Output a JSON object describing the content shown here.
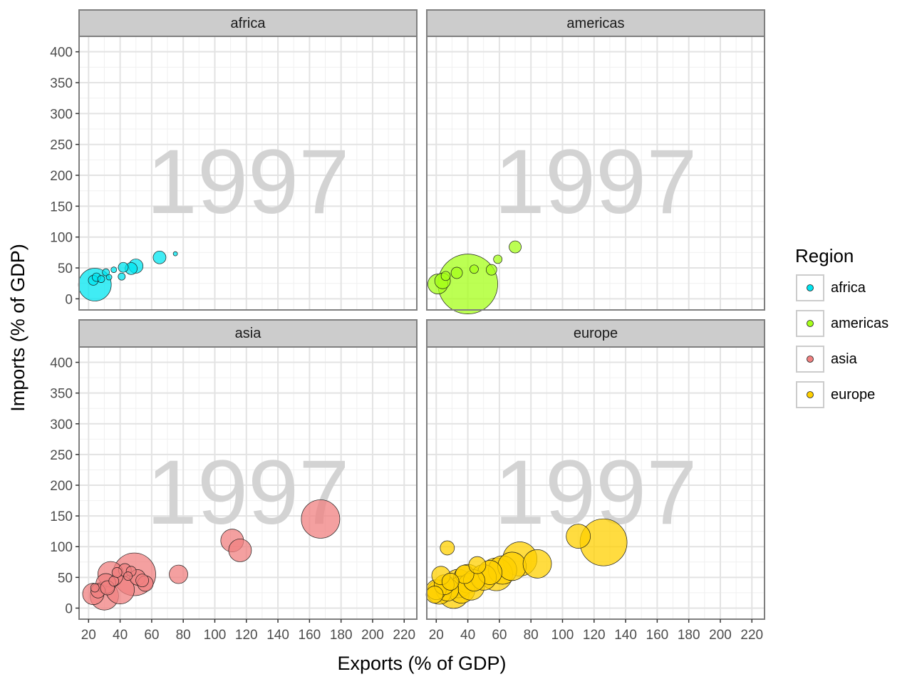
{
  "chart_data": {
    "type": "scatter",
    "title": "",
    "xlabel": "Exports (% of GDP)",
    "ylabel": "Imports (% of GDP)",
    "xlim": [
      14,
      228
    ],
    "ylim": [
      -18,
      425
    ],
    "xticks": [
      20,
      40,
      60,
      80,
      100,
      120,
      140,
      160,
      180,
      200,
      220
    ],
    "yticks": [
      0,
      50,
      100,
      150,
      200,
      250,
      300,
      350,
      400
    ],
    "grid": true,
    "annotation": "1997",
    "legend": {
      "title": "Region",
      "position": "right",
      "entries": [
        {
          "name": "africa",
          "color": "#00E5F0"
        },
        {
          "name": "americas",
          "color": "#A6FF1A"
        },
        {
          "name": "asia",
          "color": "#F08080"
        },
        {
          "name": "europe",
          "color": "#FFD000"
        }
      ]
    },
    "facets": [
      {
        "label": "africa",
        "color": "#00E5F0",
        "points": [
          {
            "x": 24,
            "y": 23,
            "size": 46
          },
          {
            "x": 23,
            "y": 30,
            "size": 14
          },
          {
            "x": 25,
            "y": 35,
            "size": 12
          },
          {
            "x": 28,
            "y": 32,
            "size": 10
          },
          {
            "x": 31,
            "y": 43,
            "size": 10
          },
          {
            "x": 33,
            "y": 35,
            "size": 8
          },
          {
            "x": 36,
            "y": 47,
            "size": 8
          },
          {
            "x": 41,
            "y": 36,
            "size": 10
          },
          {
            "x": 42,
            "y": 51,
            "size": 14
          },
          {
            "x": 47,
            "y": 49,
            "size": 17
          },
          {
            "x": 50,
            "y": 53,
            "size": 20
          },
          {
            "x": 65,
            "y": 67,
            "size": 18
          },
          {
            "x": 75,
            "y": 73,
            "size": 6
          }
        ]
      },
      {
        "label": "americas",
        "color": "#A6FF1A",
        "points": [
          {
            "x": 21,
            "y": 24,
            "size": 28
          },
          {
            "x": 24,
            "y": 29,
            "size": 22
          },
          {
            "x": 26,
            "y": 37,
            "size": 13
          },
          {
            "x": 33,
            "y": 42,
            "size": 16
          },
          {
            "x": 40,
            "y": 24,
            "size": 84
          },
          {
            "x": 44,
            "y": 48,
            "size": 12
          },
          {
            "x": 55,
            "y": 47,
            "size": 15
          },
          {
            "x": 59,
            "y": 64,
            "size": 12
          },
          {
            "x": 70,
            "y": 84,
            "size": 17
          }
        ]
      },
      {
        "label": "asia",
        "color": "#F08080",
        "points": [
          {
            "x": 23,
            "y": 23,
            "size": 30
          },
          {
            "x": 24,
            "y": 33,
            "size": 12
          },
          {
            "x": 26,
            "y": 28,
            "size": 20
          },
          {
            "x": 30,
            "y": 20,
            "size": 40
          },
          {
            "x": 31,
            "y": 40,
            "size": 28
          },
          {
            "x": 32,
            "y": 33,
            "size": 20
          },
          {
            "x": 34,
            "y": 55,
            "size": 36
          },
          {
            "x": 36,
            "y": 44,
            "size": 14
          },
          {
            "x": 38,
            "y": 58,
            "size": 14
          },
          {
            "x": 40,
            "y": 30,
            "size": 40
          },
          {
            "x": 43,
            "y": 62,
            "size": 18
          },
          {
            "x": 45,
            "y": 52,
            "size": 12
          },
          {
            "x": 47,
            "y": 60,
            "size": 14
          },
          {
            "x": 49,
            "y": 55,
            "size": 60
          },
          {
            "x": 51,
            "y": 50,
            "size": 22
          },
          {
            "x": 54,
            "y": 45,
            "size": 18
          },
          {
            "x": 56,
            "y": 40,
            "size": 22
          },
          {
            "x": 77,
            "y": 55,
            "size": 26
          },
          {
            "x": 111,
            "y": 110,
            "size": 32
          },
          {
            "x": 116,
            "y": 94,
            "size": 32
          },
          {
            "x": 167,
            "y": 145,
            "size": 54
          }
        ]
      },
      {
        "label": "europe",
        "color": "#FFD000",
        "points": [
          {
            "x": 19,
            "y": 22,
            "size": 24
          },
          {
            "x": 20,
            "y": 30,
            "size": 28
          },
          {
            "x": 22,
            "y": 26,
            "size": 34
          },
          {
            "x": 23,
            "y": 53,
            "size": 26
          },
          {
            "x": 25,
            "y": 38,
            "size": 28
          },
          {
            "x": 27,
            "y": 30,
            "size": 32
          },
          {
            "x": 27,
            "y": 98,
            "size": 20
          },
          {
            "x": 29,
            "y": 43,
            "size": 24
          },
          {
            "x": 31,
            "y": 25,
            "size": 44
          },
          {
            "x": 34,
            "y": 40,
            "size": 40
          },
          {
            "x": 36,
            "y": 30,
            "size": 38
          },
          {
            "x": 38,
            "y": 55,
            "size": 26
          },
          {
            "x": 40,
            "y": 48,
            "size": 40
          },
          {
            "x": 42,
            "y": 35,
            "size": 38
          },
          {
            "x": 44,
            "y": 45,
            "size": 30
          },
          {
            "x": 46,
            "y": 70,
            "size": 24
          },
          {
            "x": 50,
            "y": 50,
            "size": 36
          },
          {
            "x": 54,
            "y": 58,
            "size": 34
          },
          {
            "x": 58,
            "y": 55,
            "size": 46
          },
          {
            "x": 62,
            "y": 62,
            "size": 40
          },
          {
            "x": 68,
            "y": 68,
            "size": 40
          },
          {
            "x": 73,
            "y": 80,
            "size": 48
          },
          {
            "x": 84,
            "y": 72,
            "size": 40
          },
          {
            "x": 110,
            "y": 117,
            "size": 34
          },
          {
            "x": 126,
            "y": 107,
            "size": 66
          }
        ]
      }
    ]
  }
}
